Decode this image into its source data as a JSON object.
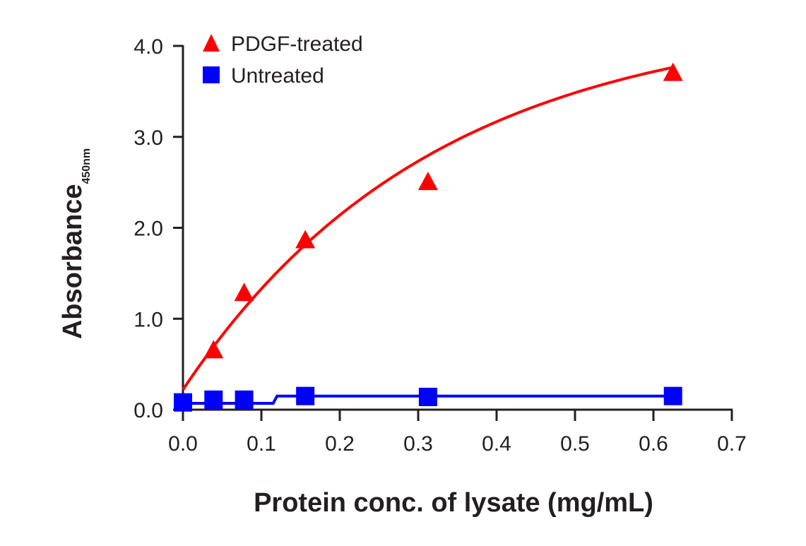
{
  "chart_data": {
    "type": "scatter",
    "title": "",
    "xlabel": "Protein conc. of lysate (mg/mL)",
    "ylabel": "Absorbance",
    "ylabel_subscript": "450nm",
    "xlim": [
      0,
      0.7
    ],
    "ylim": [
      0,
      4.0
    ],
    "x_ticks": [
      "0.0",
      "0.1",
      "0.2",
      "0.3",
      "0.4",
      "0.5",
      "0.6",
      "0.7"
    ],
    "y_ticks": [
      "0.0",
      "1.0",
      "2.0",
      "3.0",
      "4.0"
    ],
    "grid": false,
    "legend_position": "top-left",
    "series": [
      {
        "name": "PDGF-treated",
        "marker": "triangle",
        "color": "#ff0000",
        "x": [
          0.039,
          0.078,
          0.156,
          0.3125,
          0.625
        ],
        "y": [
          0.65,
          1.28,
          1.86,
          2.5,
          3.7
        ],
        "fit": "saturation curve",
        "fit_y0": 0.22,
        "fit_ymax": 4.35,
        "fit_k": 0.32
      },
      {
        "name": "Untreated",
        "marker": "square",
        "color": "#0000ff",
        "x": [
          0,
          0.039,
          0.078,
          0.156,
          0.3125,
          0.625
        ],
        "y": [
          0.08,
          0.11,
          0.11,
          0.15,
          0.14,
          0.15
        ],
        "fit": "step",
        "fit_levels": [
          [
            0,
            0.07
          ],
          [
            0.115,
            0.07
          ],
          [
            0.12,
            0.15
          ],
          [
            0.625,
            0.15
          ]
        ]
      }
    ]
  }
}
